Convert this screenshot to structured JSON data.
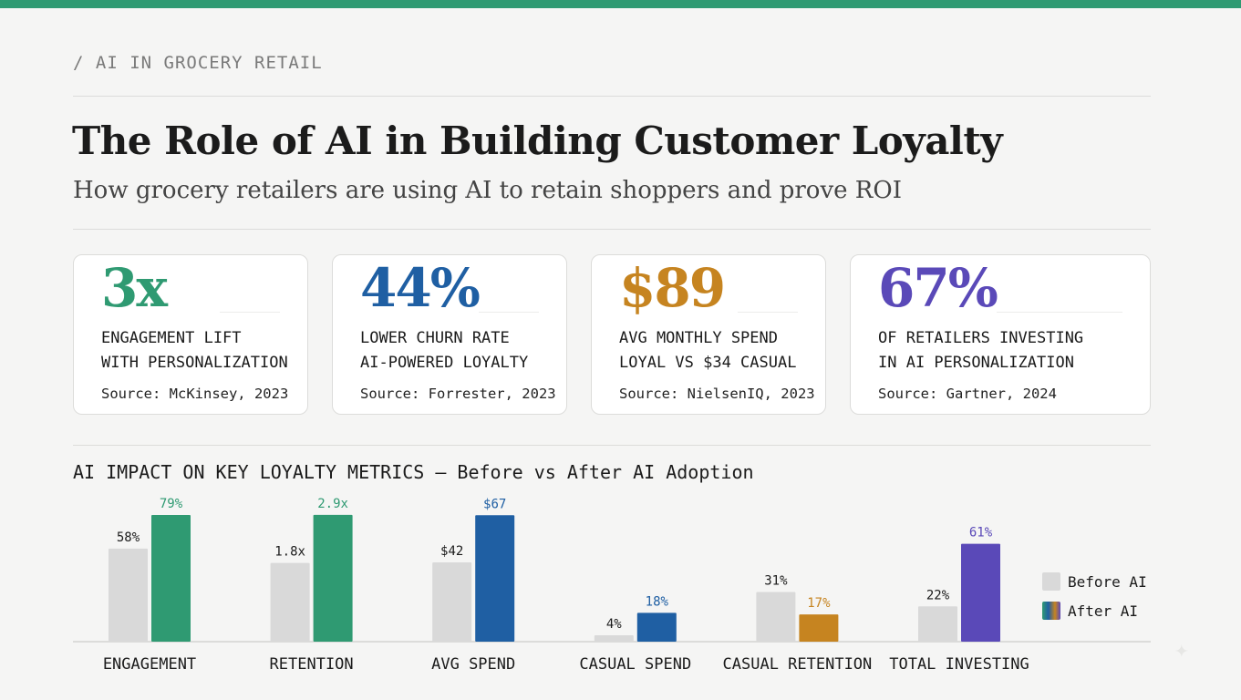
{
  "header": {
    "eyebrow": "/ AI IN GROCERY RETAIL",
    "title": "The Role of AI in Building Customer Loyalty",
    "subtitle": "How grocery retailers are using AI to retain shoppers and prove ROI"
  },
  "stats": [
    {
      "value": "3x",
      "line1": "ENGAGEMENT LIFT",
      "line2": "WITH PERSONALIZATION",
      "source": "Source: McKinsey, 2023",
      "color": "#2f9a72"
    },
    {
      "value": "44%",
      "line1": "LOWER CHURN RATE",
      "line2": "AI-POWERED LOYALTY",
      "source": "Source: Forrester, 2023",
      "color": "#1f5fa3"
    },
    {
      "value": "$89",
      "line1": "AVG MONTHLY SPEND",
      "line2": "LOYAL VS $34 CASUAL",
      "source": "Source: NielsenIQ, 2023",
      "color": "#c68420"
    },
    {
      "value": "67%",
      "line1": "OF RETAILERS INVESTING",
      "line2": "IN AI PERSONALIZATION",
      "source": "Source: Gartner, 2024",
      "color": "#5a49b8"
    }
  ],
  "chart_data": {
    "type": "bar",
    "title": "AI IMPACT ON KEY LOYALTY METRICS — Before vs After AI Adoption",
    "categories": [
      "ENGAGEMENT",
      "RETENTION",
      "AVG SPEND",
      "CASUAL SPEND",
      "CASUAL RETENTION",
      "TOTAL INVESTING"
    ],
    "series": [
      {
        "name": "Before AI",
        "color": "#d9d9d9",
        "values": [
          58,
          1.8,
          42,
          4,
          31,
          22
        ],
        "labels": [
          "58%",
          "1.8x",
          "$42",
          "4%",
          "31%",
          "22%"
        ]
      },
      {
        "name": "After AI",
        "values": [
          79,
          2.9,
          67,
          18,
          17,
          61
        ],
        "labels": [
          "79%",
          "2.9x",
          "$67",
          "18%",
          "17%",
          "61%"
        ],
        "colors": [
          "#2f9a72",
          "#2f9a72",
          "#1f5fa3",
          "#1f5fa3",
          "#c68420",
          "#5a49b8"
        ]
      }
    ],
    "legend": "right",
    "grid": false
  }
}
